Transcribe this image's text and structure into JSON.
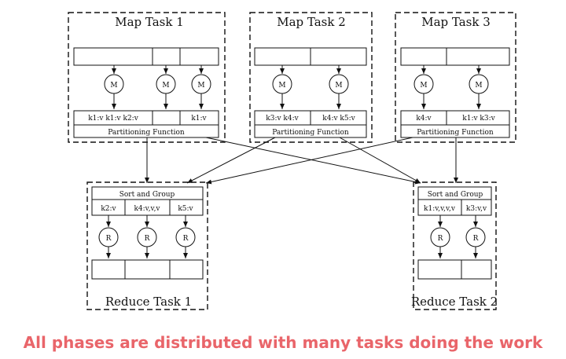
{
  "map_tasks": [
    {
      "title": "Map Task 1",
      "pairs": [
        "k1:v k1:v k2:v",
        "k1:v"
      ],
      "partition_label": "Partitioning Function",
      "mapper_label": "M"
    },
    {
      "title": "Map Task 2",
      "pairs": [
        "k3:v k4:v",
        "k4:v k5:v"
      ],
      "partition_label": "Partitioning Function",
      "mapper_label": "M"
    },
    {
      "title": "Map Task 3",
      "pairs": [
        "k4:v",
        "k1:v k3:v"
      ],
      "partition_label": "Partitioning Function",
      "mapper_label": "M"
    }
  ],
  "reduce_tasks": [
    {
      "title": "Reduce Task 1",
      "sort_label": "Sort and Group",
      "groups": [
        "k2:v",
        "k4:v,v,v",
        "k5:v"
      ],
      "reducer_label": "R"
    },
    {
      "title": "Reduce Task 2",
      "sort_label": "Sort and Group",
      "groups": [
        "k1:v,v,v,v",
        "k3:v,v"
      ],
      "reducer_label": "R"
    }
  ],
  "caption": "All phases are distributed with many tasks doing the work"
}
